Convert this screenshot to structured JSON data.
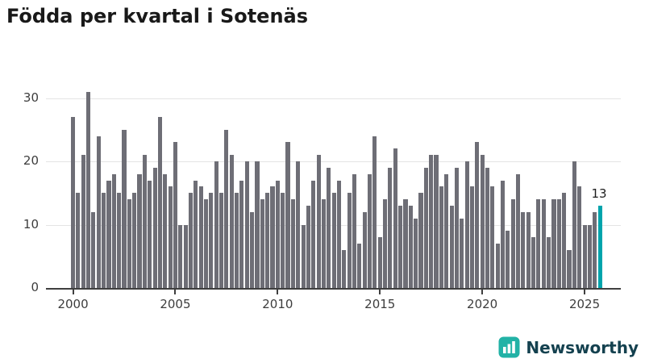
{
  "header": {
    "title": "Födda per kvartal i Sotenäs"
  },
  "chart_data": {
    "type": "bar",
    "title": "Födda per kvartal i Sotenäs",
    "xlabel": "",
    "ylabel": "",
    "ylim": [
      0,
      33
    ],
    "grid": true,
    "bar_color": "#6e6e76",
    "highlight_color": "#00a4ac",
    "axis_color": "#3f3f3f",
    "y_ticks": [
      0,
      10,
      20,
      30
    ],
    "x_tick_labels": [
      "2000",
      "2005",
      "2010",
      "2015",
      "2020",
      "2025"
    ],
    "x_tick_indices": [
      0,
      20,
      40,
      60,
      80,
      100
    ],
    "x": [
      "2000 Q1",
      "2000 Q2",
      "2000 Q3",
      "2000 Q4",
      "2001 Q1",
      "2001 Q2",
      "2001 Q3",
      "2001 Q4",
      "2002 Q1",
      "2002 Q2",
      "2002 Q3",
      "2002 Q4",
      "2003 Q1",
      "2003 Q2",
      "2003 Q3",
      "2003 Q4",
      "2004 Q1",
      "2004 Q2",
      "2004 Q3",
      "2004 Q4",
      "2005 Q1",
      "2005 Q2",
      "2005 Q3",
      "2005 Q4",
      "2006 Q1",
      "2006 Q2",
      "2006 Q3",
      "2006 Q4",
      "2007 Q1",
      "2007 Q2",
      "2007 Q3",
      "2007 Q4",
      "2008 Q1",
      "2008 Q2",
      "2008 Q3",
      "2008 Q4",
      "2009 Q1",
      "2009 Q2",
      "2009 Q3",
      "2009 Q4",
      "2010 Q1",
      "2010 Q2",
      "2010 Q3",
      "2010 Q4",
      "2011 Q1",
      "2011 Q2",
      "2011 Q3",
      "2011 Q4",
      "2012 Q1",
      "2012 Q2",
      "2012 Q3",
      "2012 Q4",
      "2013 Q1",
      "2013 Q2",
      "2013 Q3",
      "2013 Q4",
      "2014 Q1",
      "2014 Q2",
      "2014 Q3",
      "2014 Q4",
      "2015 Q1",
      "2015 Q2",
      "2015 Q3",
      "2015 Q4",
      "2016 Q1",
      "2016 Q2",
      "2016 Q3",
      "2016 Q4",
      "2017 Q1",
      "2017 Q2",
      "2017 Q3",
      "2017 Q4",
      "2018 Q1",
      "2018 Q2",
      "2018 Q3",
      "2018 Q4",
      "2019 Q1",
      "2019 Q2",
      "2019 Q3",
      "2019 Q4",
      "2020 Q1",
      "2020 Q2",
      "2020 Q3",
      "2020 Q4",
      "2021 Q1",
      "2021 Q2",
      "2021 Q3",
      "2021 Q4",
      "2022 Q1",
      "2022 Q2",
      "2022 Q3",
      "2022 Q4",
      "2023 Q1",
      "2023 Q2",
      "2023 Q3",
      "2023 Q4",
      "2024 Q1",
      "2024 Q2",
      "2024 Q3",
      "2024 Q4",
      "2025 Q1",
      "2025 Q2",
      "2025 Q3",
      "2025 Q4"
    ],
    "values": [
      27,
      15,
      21,
      31,
      12,
      24,
      15,
      17,
      18,
      15,
      25,
      14,
      15,
      18,
      21,
      17,
      19,
      27,
      18,
      16,
      23,
      10,
      10,
      15,
      17,
      16,
      14,
      15,
      20,
      15,
      25,
      21,
      15,
      17,
      20,
      12,
      20,
      14,
      15,
      16,
      17,
      15,
      23,
      14,
      20,
      10,
      13,
      17,
      21,
      14,
      19,
      15,
      17,
      6,
      15,
      18,
      7,
      12,
      18,
      24,
      8,
      14,
      19,
      22,
      13,
      14,
      13,
      11,
      15,
      19,
      21,
      21,
      16,
      18,
      13,
      19,
      11,
      20,
      16,
      23,
      21,
      19,
      16,
      7,
      17,
      9,
      14,
      18,
      12,
      12,
      8,
      14,
      14,
      8,
      14,
      14,
      15,
      6,
      20,
      16,
      10,
      10,
      12,
      13
    ],
    "highlight": {
      "index": 103,
      "label": "13"
    }
  },
  "footer": {
    "brand": "Newsworthy"
  }
}
